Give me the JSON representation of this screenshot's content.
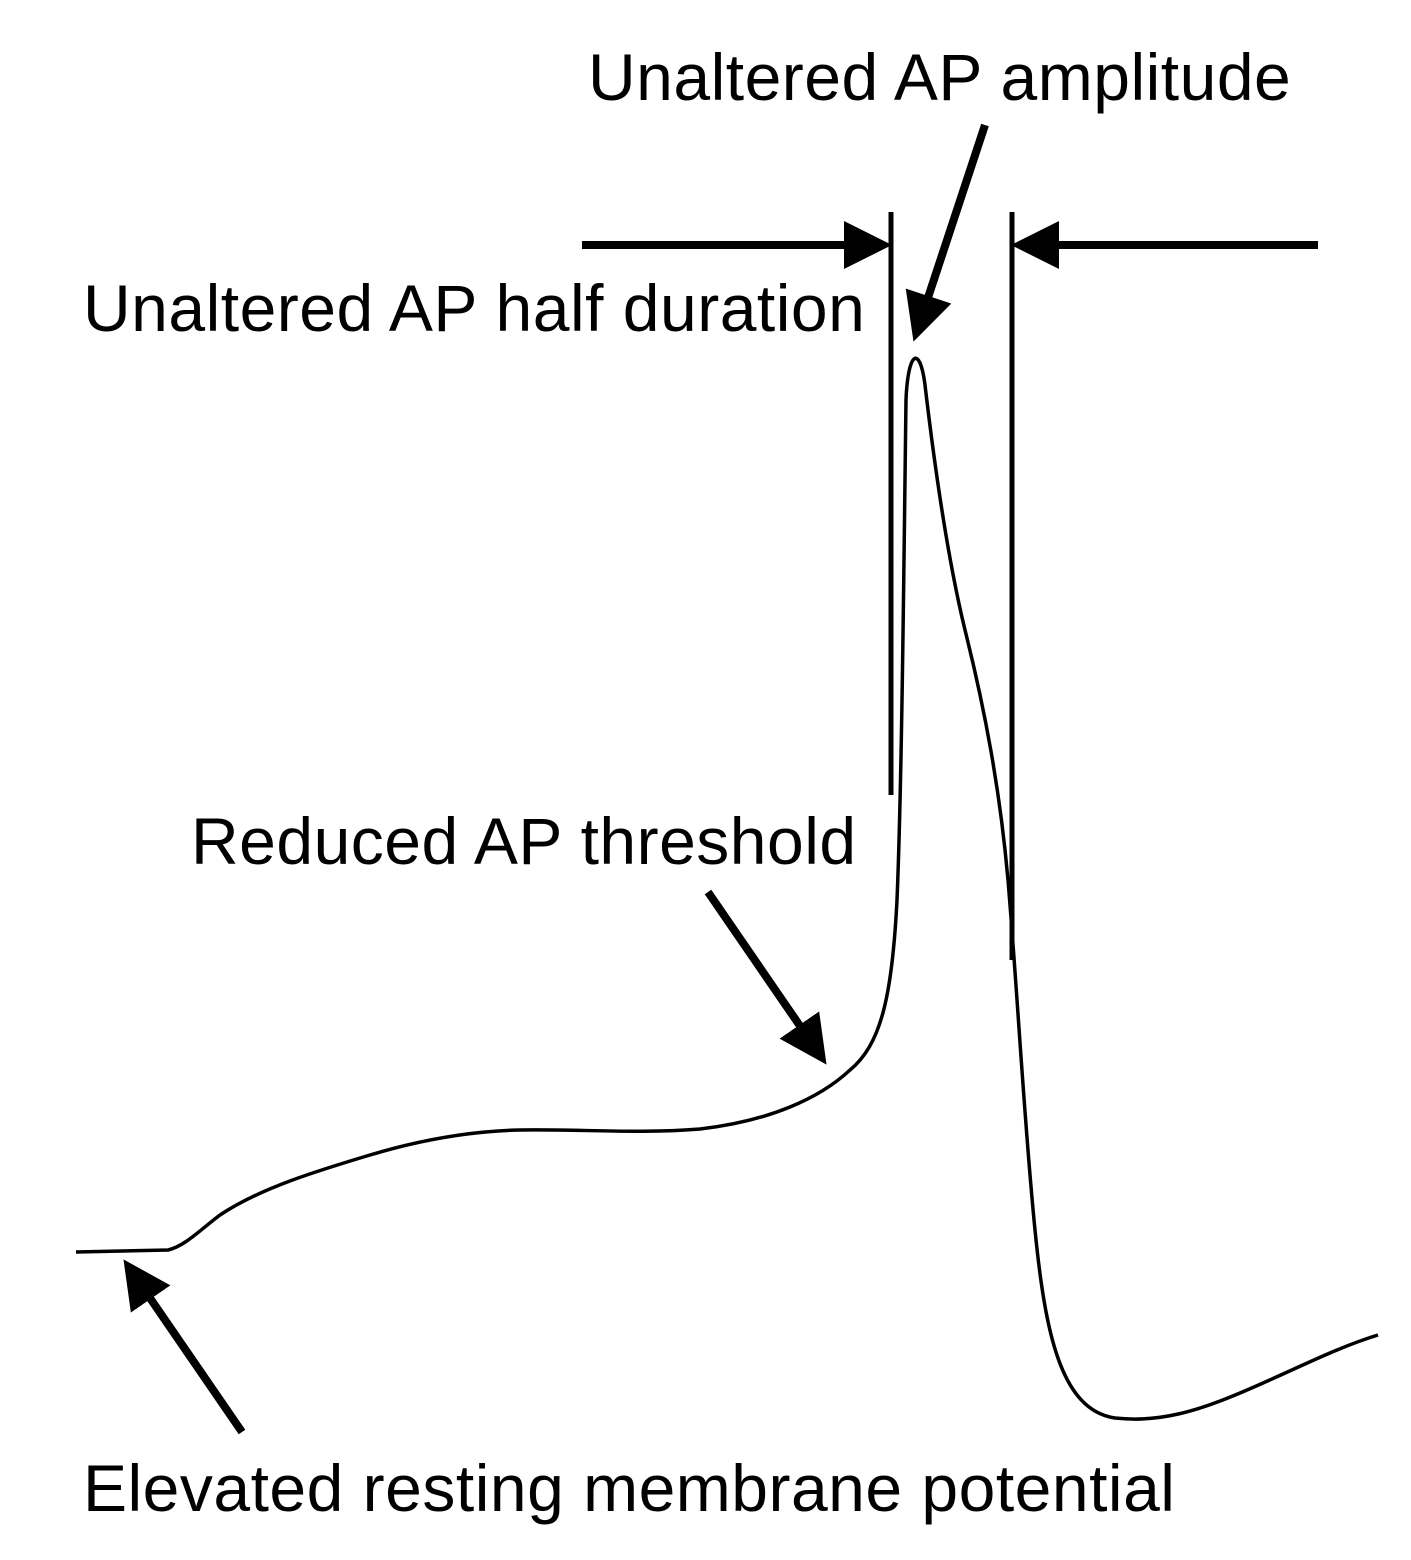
{
  "annotations": {
    "amplitude": "Unaltered AP amplitude",
    "half_duration": "Unaltered AP half duration",
    "threshold": "Reduced AP threshold",
    "resting_potential": "Elevated resting membrane potential"
  },
  "colors": {
    "ink": "#000000",
    "background": "#ffffff"
  }
}
